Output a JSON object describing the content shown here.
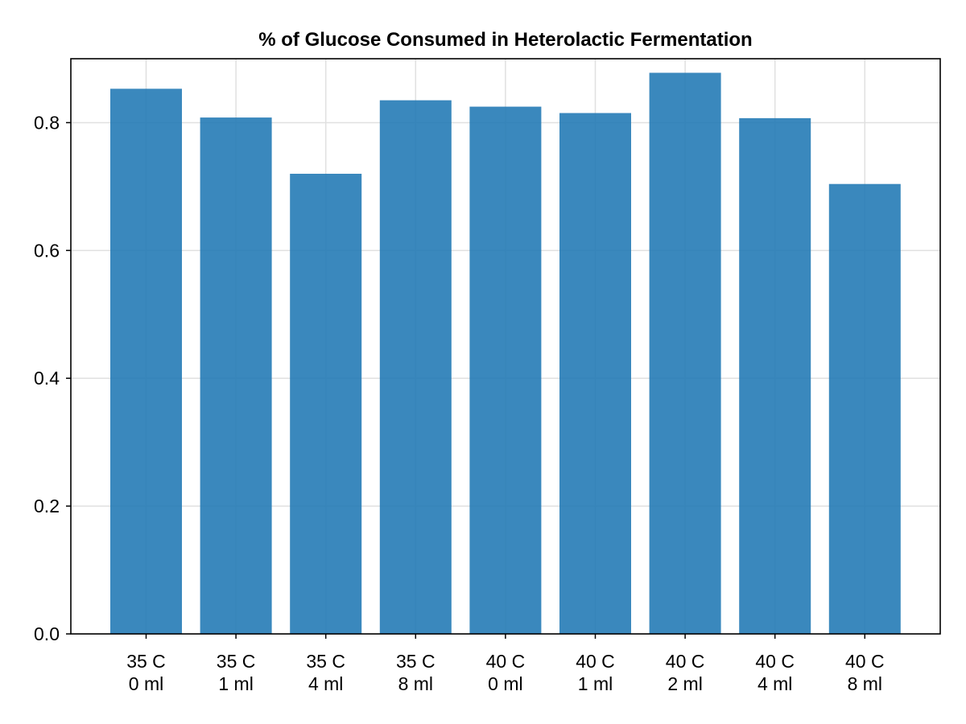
{
  "chart_data": {
    "type": "bar",
    "title": "% of Glucose Consumed in Heterolactic Fermentation",
    "xlabel": "",
    "ylabel": "",
    "categories": [
      [
        "35 C",
        "0 ml"
      ],
      [
        "35 C",
        "1 ml"
      ],
      [
        "35 C",
        "4 ml"
      ],
      [
        "35 C",
        "8 ml"
      ],
      [
        "40 C",
        "0 ml"
      ],
      [
        "40 C",
        "1 ml"
      ],
      [
        "40 C",
        "2 ml"
      ],
      [
        "40 C",
        "4 ml"
      ],
      [
        "40 C",
        "8 ml"
      ]
    ],
    "values": [
      0.853,
      0.808,
      0.72,
      0.835,
      0.825,
      0.815,
      0.878,
      0.807,
      0.704
    ],
    "ylim": [
      0,
      0.9
    ],
    "yticks": [
      "0.0",
      "0.2",
      "0.4",
      "0.6",
      "0.8"
    ],
    "grid": true,
    "legend": "none",
    "colors": {
      "bar": "#1f78b4",
      "grid": "#e0e0e0",
      "axis": "#000000"
    }
  }
}
